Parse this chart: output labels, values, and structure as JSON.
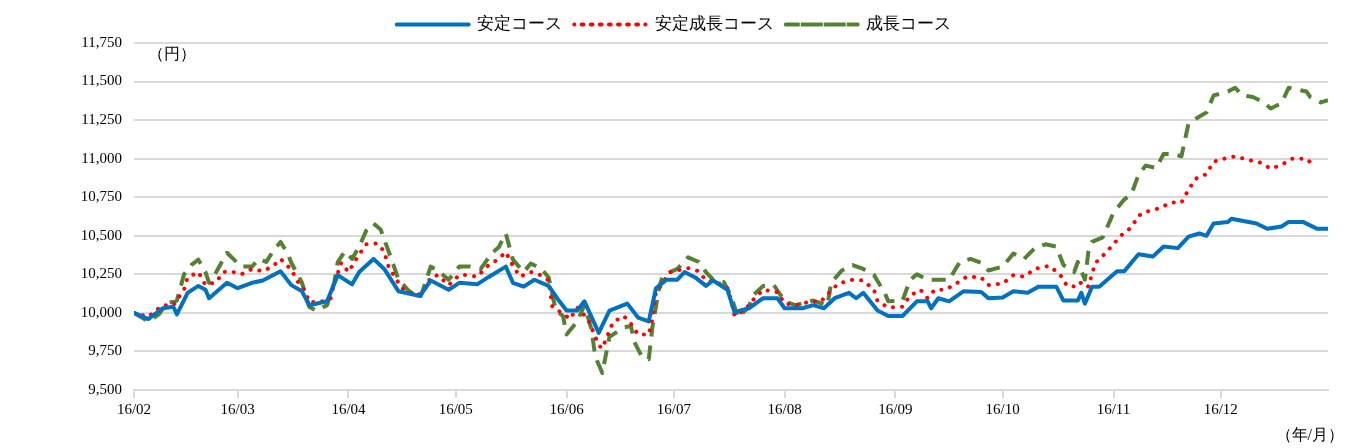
{
  "chart_data": {
    "type": "line",
    "ylabel": "（円）",
    "xlabel": "（年/月）",
    "legend": "top",
    "grid": "y",
    "marker": "none",
    "xlim": [
      "--02-01",
      "--12-31"
    ],
    "xticks": [
      {
        "value": "--02-01",
        "label": "16/02"
      },
      {
        "value": "--03-01",
        "label": "16/03"
      },
      {
        "value": "--04-01",
        "label": "16/04"
      },
      {
        "value": "--05-01",
        "label": "16/05"
      },
      {
        "value": "--06-01",
        "label": "16/06"
      },
      {
        "value": "--07-01",
        "label": "16/07"
      },
      {
        "value": "--08-01",
        "label": "16/08"
      },
      {
        "value": "--09-01",
        "label": "16/09"
      },
      {
        "value": "--10-01",
        "label": "16/10"
      },
      {
        "value": "--11-01",
        "label": "16/11"
      },
      {
        "value": "--12-01",
        "label": "16/12"
      }
    ],
    "ylim": [
      9500,
      11750
    ],
    "yticks": [
      {
        "value": 9500,
        "label": "9,500"
      },
      {
        "value": 9750,
        "label": "9,750"
      },
      {
        "value": 10000,
        "label": "10,000"
      },
      {
        "value": 10250,
        "label": "10,250"
      },
      {
        "value": 10500,
        "label": "10,500"
      },
      {
        "value": 10750,
        "label": "10,750"
      },
      {
        "value": 11000,
        "label": "11,000"
      },
      {
        "value": 11250,
        "label": "11,250"
      },
      {
        "value": 11500,
        "label": "11,500"
      },
      {
        "value": 11750,
        "label": "11,750"
      }
    ],
    "series": [
      {
        "name": "安定コース",
        "color": "#0070c0",
        "line_style": "solid",
        "x": [
          "--02-01",
          "--02-05",
          "--02-09",
          "--02-12",
          "--02-13",
          "--02-16",
          "--02-19",
          "--02-21",
          "--02-22",
          "--02-27",
          "--03-01",
          "--03-05",
          "--03-08",
          "--03-13",
          "--03-16",
          "--03-19",
          "--03-21",
          "--03-26",
          "--03-29",
          "--04-02",
          "--04-04",
          "--04-08",
          "--04-11",
          "--04-15",
          "--04-21",
          "--04-24",
          "--04-29",
          "--05-02",
          "--05-07",
          "--05-10",
          "--05-15",
          "--05-17",
          "--05-20",
          "--05-23",
          "--05-27",
          "--05-30",
          "--06-01",
          "--06-04",
          "--06-06",
          "--06-10",
          "--06-13",
          "--06-18",
          "--06-21",
          "--06-24",
          "--06-26",
          "--06-29",
          "--07-02",
          "--07-04",
          "--07-07",
          "--07-10",
          "--07-12",
          "--07-16",
          "--07-18",
          "--07-22",
          "--07-26",
          "--07-30",
          "--08-01",
          "--08-06",
          "--08-09",
          "--08-12",
          "--08-15",
          "--08-19",
          "--08-21",
          "--08-23",
          "--08-27",
          "--08-30",
          "--09-03",
          "--09-07",
          "--09-10",
          "--09-11",
          "--09-13",
          "--09-16",
          "--09-20",
          "--09-25",
          "--09-27",
          "--10-01",
          "--10-04",
          "--10-08",
          "--10-11",
          "--10-16",
          "--10-18",
          "--10-22",
          "--10-23",
          "--10-24",
          "--10-26",
          "--10-28",
          "--11-02",
          "--11-04",
          "--11-08",
          "--11-12",
          "--11-15",
          "--11-19",
          "--11-22",
          "--11-25",
          "--11-27",
          "--11-29",
          "--12-03",
          "--12-04",
          "--12-11",
          "--12-14",
          "--12-18",
          "--12-20",
          "--12-24",
          "--12-28",
          "--12-31"
        ],
        "values": [
          10000,
          9960,
          10030,
          10040,
          9990,
          10130,
          10175,
          10150,
          10095,
          10195,
          10160,
          10195,
          10210,
          10270,
          10180,
          10140,
          10050,
          10075,
          10245,
          10185,
          10265,
          10350,
          10285,
          10140,
          10110,
          10210,
          10150,
          10195,
          10185,
          10230,
          10300,
          10195,
          10170,
          10215,
          10175,
          10075,
          10015,
          10015,
          10075,
          9870,
          10015,
          10060,
          9970,
          9945,
          10160,
          10215,
          10215,
          10265,
          10230,
          10175,
          10210,
          10150,
          10005,
          10030,
          10095,
          10095,
          10030,
          10030,
          10050,
          10030,
          10095,
          10130,
          10095,
          10130,
          10015,
          9980,
          9980,
          10075,
          10075,
          10030,
          10095,
          10075,
          10140,
          10135,
          10095,
          10100,
          10140,
          10130,
          10170,
          10170,
          10080,
          10080,
          10130,
          10060,
          10170,
          10170,
          10270,
          10270,
          10380,
          10365,
          10430,
          10420,
          10495,
          10515,
          10500,
          10580,
          10590,
          10610,
          10580,
          10545,
          10560,
          10590,
          10590,
          10545,
          10545
        ]
      },
      {
        "name": "安定成長コース",
        "color": "#ff0000",
        "line_style": "dotted",
        "x": [
          "--02-01",
          "--02-05",
          "--02-09",
          "--02-12",
          "--02-15",
          "--02-16",
          "--02-19",
          "--02-21",
          "--02-24",
          "--02-26",
          "--02-28",
          "--03-02",
          "--03-05",
          "--03-08",
          "--03-11",
          "--03-13",
          "--03-16",
          "--03-18",
          "--03-20",
          "--03-21",
          "--03-24",
          "--03-27",
          "--03-28",
          "--03-30",
          "--04-01",
          "--04-04",
          "--04-06",
          "--04-09",
          "--04-11",
          "--04-12",
          "--04-14",
          "--04-16",
          "--04-20",
          "--04-22",
          "--04-24",
          "--04-26",
          "--04-29",
          "--05-02",
          "--05-04",
          "--05-07",
          "--05-10",
          "--05-13",
          "--05-15",
          "--05-17",
          "--05-19",
          "--05-22",
          "--05-24",
          "--05-27",
          "--05-28",
          "--05-31",
          "--06-02",
          "--06-04",
          "--06-07",
          "--06-10",
          "--06-11",
          "--06-14",
          "--06-17",
          "--06-19",
          "--06-21",
          "--06-24",
          "--06-25",
          "--06-26",
          "--06-30",
          "--07-05",
          "--07-08",
          "--07-10",
          "--07-13",
          "--07-16",
          "--07-17",
          "--07-18",
          "--07-21",
          "--07-23",
          "--07-26",
          "--07-30",
          "--08-01",
          "--08-05",
          "--08-08",
          "--08-11",
          "--08-13",
          "--08-16",
          "--08-20",
          "--08-23",
          "--08-26",
          "--08-27",
          "--08-30",
          "--09-03",
          "--09-05",
          "--09-08",
          "--09-10",
          "--09-12",
          "--09-15",
          "--09-18",
          "--09-21",
          "--09-25",
          "--09-27",
          "--10-01",
          "--10-04",
          "--10-07",
          "--10-10",
          "--10-14",
          "--10-17",
          "--10-19",
          "--10-22",
          "--10-23",
          "--10-25",
          "--10-26",
          "--10-27",
          "--10-29",
          "--11-01",
          "--11-03",
          "--11-06",
          "--11-08",
          "--11-10",
          "--11-14",
          "--11-17",
          "--11-20",
          "--11-22",
          "--11-24",
          "--11-27",
          "--11-29",
          "--12-02",
          "--12-05",
          "--12-09",
          "--12-12",
          "--12-15",
          "--12-18",
          "--12-21",
          "--12-25",
          "--12-27"
        ],
        "values": [
          10000,
          9975,
          10050,
          10050,
          10150,
          10230,
          10265,
          10180,
          10200,
          10265,
          10270,
          10250,
          10285,
          10270,
          10305,
          10350,
          10280,
          10195,
          10135,
          10070,
          10070,
          10095,
          10190,
          10325,
          10265,
          10380,
          10445,
          10450,
          10400,
          10310,
          10230,
          10160,
          10110,
          10140,
          10230,
          10245,
          10180,
          10245,
          10245,
          10235,
          10305,
          10350,
          10395,
          10305,
          10235,
          10265,
          10255,
          10210,
          10040,
          9995,
          9960,
          10035,
          9960,
          9790,
          9770,
          9940,
          9980,
          9930,
          9860,
          9860,
          9955,
          10130,
          10265,
          10290,
          10270,
          10210,
          10200,
          10160,
          10080,
          9980,
          10020,
          10080,
          10150,
          10135,
          10060,
          10050,
          10075,
          10070,
          10120,
          10190,
          10215,
          10210,
          10150,
          10075,
          10035,
          10040,
          10110,
          10150,
          10095,
          10150,
          10150,
          10190,
          10235,
          10230,
          10180,
          10190,
          10245,
          10235,
          10285,
          10305,
          10250,
          10175,
          10170,
          10200,
          10170,
          10255,
          10325,
          10370,
          10445,
          10500,
          10555,
          10630,
          10655,
          10680,
          10715,
          10715,
          10800,
          10870,
          10900,
          10980,
          11000,
          11015,
          10990,
          10975,
          10935,
          10960,
          11000,
          11000,
          10955
        ]
      },
      {
        "name": "成長コース",
        "color": "#548235",
        "line_style": "dashed",
        "x": [
          "--02-01",
          "--02-05",
          "--02-08",
          "--02-10",
          "--02-13",
          "--02-15",
          "--02-17",
          "--02-19",
          "--02-21",
          "--02-22",
          "--02-24",
          "--02-27",
          "--02-29",
          "--03-02",
          "--03-05",
          "--03-07",
          "--03-09",
          "--03-11",
          "--03-13",
          "--03-15",
          "--03-16",
          "--03-19",
          "--03-21",
          "--03-23",
          "--03-26",
          "--03-28",
          "--03-29",
          "--03-31",
          "--04-02",
          "--04-04",
          "--04-06",
          "--04-08",
          "--04-10",
          "--04-13",
          "--04-15",
          "--04-18",
          "--04-21",
          "--04-22",
          "--04-24",
          "--04-26",
          "--04-29",
          "--05-02",
          "--05-05",
          "--05-08",
          "--05-11",
          "--05-13",
          "--05-15",
          "--05-17",
          "--05-20",
          "--05-22",
          "--05-25",
          "--05-27",
          "--05-29",
          "--05-31",
          "--06-01",
          "--06-04",
          "--06-06",
          "--06-08",
          "--06-09",
          "--06-11",
          "--06-13",
          "--06-17",
          "--06-19",
          "--06-20",
          "--06-22",
          "--06-24",
          "--06-25",
          "--06-27",
          "--06-28",
          "--07-02",
          "--07-05",
          "--07-08",
          "--07-10",
          "--07-12",
          "--07-15",
          "--07-17",
          "--07-19",
          "--07-22",
          "--07-23",
          "--07-26",
          "--07-29",
          "--08-01",
          "--08-04",
          "--08-09",
          "--08-13",
          "--08-14",
          "--08-17",
          "--08-20",
          "--08-23",
          "--08-26",
          "--08-29",
          "--08-30",
          "--09-03",
          "--09-05",
          "--09-07",
          "--09-10",
          "--09-12",
          "--09-16",
          "--09-19",
          "--09-22",
          "--09-25",
          "--09-27",
          "--10-01",
          "--10-04",
          "--10-07",
          "--10-10",
          "--10-13",
          "--10-16",
          "--10-18",
          "--10-21",
          "--10-22",
          "--10-24",
          "--10-25",
          "--10-26",
          "--10-29",
          "--11-01",
          "--11-04",
          "--11-06",
          "--11-08",
          "--11-10",
          "--11-13",
          "--11-15",
          "--11-18",
          "--11-20",
          "--11-22",
          "--11-27",
          "--11-29",
          "--12-03",
          "--12-05",
          "--12-07",
          "--12-10",
          "--12-13",
          "--12-15",
          "--12-18",
          "--12-20",
          "--12-25",
          "--12-26",
          "--12-29",
          "--12-31"
        ],
        "values": [
          10000,
          9945,
          9990,
          10060,
          10080,
          10250,
          10310,
          10345,
          10265,
          10195,
          10265,
          10390,
          10345,
          10300,
          10300,
          10350,
          10330,
          10405,
          10460,
          10385,
          10325,
          10195,
          10040,
          10015,
          10050,
          10195,
          10330,
          10400,
          10350,
          10430,
          10535,
          10580,
          10540,
          10350,
          10215,
          10140,
          10095,
          10160,
          10300,
          10275,
          10215,
          10300,
          10300,
          10285,
          10385,
          10425,
          10515,
          10345,
          10265,
          10320,
          10285,
          10230,
          10015,
          9980,
          9860,
          9945,
          10050,
          9890,
          9720,
          9610,
          9845,
          9905,
          9915,
          9810,
          9720,
          9700,
          9905,
          10175,
          10245,
          10285,
          10360,
          10330,
          10265,
          10215,
          10200,
          10110,
          9970,
          10040,
          10110,
          10175,
          10180,
          10075,
          10050,
          10080,
          10050,
          10195,
          10275,
          10310,
          10285,
          10245,
          10130,
          10075,
          10080,
          10210,
          10250,
          10215,
          10215,
          10215,
          10330,
          10350,
          10325,
          10275,
          10300,
          10385,
          10350,
          10420,
          10445,
          10430,
          10310,
          10265,
          10330,
          10215,
          10400,
          10460,
          10490,
          10650,
          10735,
          10770,
          10895,
          10955,
          10940,
          11030,
          11030,
          11015,
          11230,
          11300,
          11410,
          11435,
          11460,
          11410,
          11400,
          11365,
          11325,
          11360,
          11460,
          11435,
          11400,
          11365,
          11380
        ]
      }
    ]
  }
}
